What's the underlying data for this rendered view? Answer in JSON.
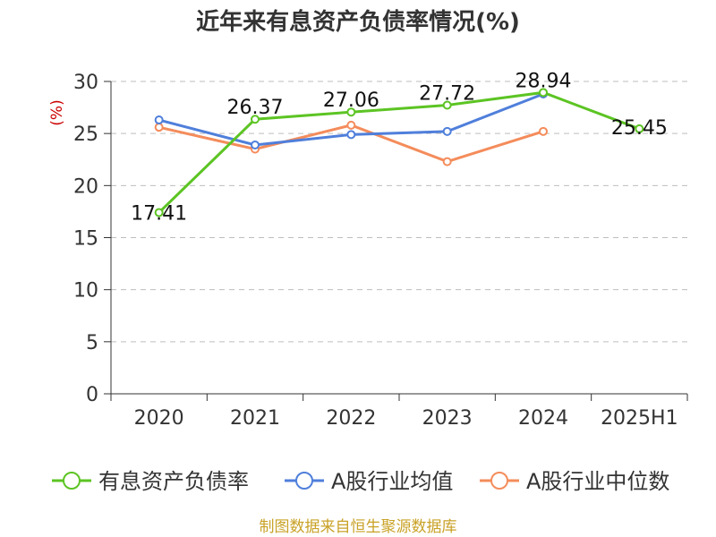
{
  "chart_data": {
    "type": "line",
    "title": "近年来有息资产负债率情况(%)",
    "ylabel": "(%)",
    "categories": [
      "2020",
      "2021",
      "2022",
      "2023",
      "2024",
      "2025H1"
    ],
    "ylim": [
      0,
      30
    ],
    "yticks": [
      0,
      5,
      10,
      15,
      20,
      25,
      30
    ],
    "grid": true,
    "legend_position": "bottom",
    "series": [
      {
        "name": "有息资产负债率",
        "color": "#5cc423",
        "values": [
          17.41,
          26.37,
          27.06,
          27.72,
          28.94,
          25.45
        ],
        "show_labels": true
      },
      {
        "name": "A股行业均值",
        "color": "#4f7fdb",
        "values": [
          26.3,
          23.9,
          24.9,
          25.2,
          28.8,
          null
        ],
        "show_labels": false
      },
      {
        "name": "A股行业中位数",
        "color": "#f48c5b",
        "values": [
          25.6,
          23.5,
          25.8,
          22.3,
          25.2,
          null
        ],
        "show_labels": false
      }
    ],
    "data_labels": [
      "17.41",
      "26.37",
      "27.06",
      "27.72",
      "28.94",
      "25.45"
    ]
  },
  "source": "制图数据来自恒生聚源数据库"
}
